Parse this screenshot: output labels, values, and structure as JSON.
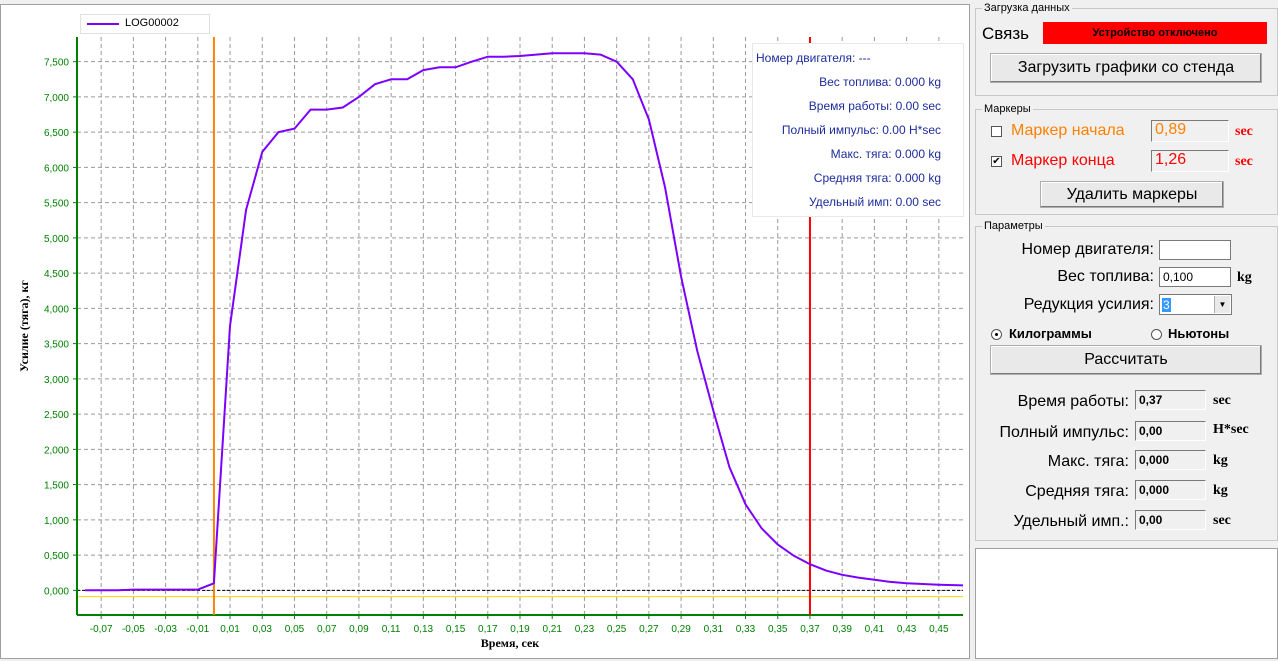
{
  "colors": {
    "curve": "#7d00ff",
    "start_marker": "#ff8000",
    "end_marker": "#ff0000",
    "axis": "#008000",
    "status_bg": "#ff0000"
  },
  "chart_data": {
    "type": "line",
    "xlabel": "Время, сек",
    "ylabel": "Усилие (тяга), кг",
    "xlim": [
      -0.085,
      0.465
    ],
    "ylim": [
      -0.35,
      7.85
    ],
    "x_ticks": [
      "-0,07",
      "-0,05",
      "-0,03",
      "-0,01",
      "0,01",
      "0,03",
      "0,05",
      "0,07",
      "0,09",
      "0,11",
      "0,13",
      "0,15",
      "0,17",
      "0,19",
      "0,21",
      "0,23",
      "0,25",
      "0,27",
      "0,29",
      "0,31",
      "0,33",
      "0,35",
      "0,37",
      "0,39",
      "0,41",
      "0,43",
      "0,45"
    ],
    "y_ticks": [
      "0,000",
      "0,500",
      "1,000",
      "1,500",
      "2,000",
      "2,500",
      "3,000",
      "3,500",
      "4,000",
      "4,500",
      "5,000",
      "5,500",
      "6,000",
      "6,500",
      "7,000",
      "7,500"
    ],
    "series": [
      {
        "name": "LOG00002",
        "x": [
          -0.08,
          -0.07,
          -0.06,
          -0.05,
          -0.04,
          -0.03,
          -0.02,
          -0.01,
          0.0,
          0.01,
          0.02,
          0.03,
          0.04,
          0.05,
          0.06,
          0.07,
          0.08,
          0.09,
          0.1,
          0.11,
          0.12,
          0.13,
          0.14,
          0.15,
          0.16,
          0.17,
          0.18,
          0.19,
          0.2,
          0.21,
          0.22,
          0.23,
          0.24,
          0.25,
          0.26,
          0.27,
          0.28,
          0.29,
          0.3,
          0.31,
          0.32,
          0.33,
          0.34,
          0.35,
          0.36,
          0.37,
          0.38,
          0.39,
          0.4,
          0.41,
          0.42,
          0.43,
          0.44,
          0.45,
          0.465
        ],
        "y": [
          0.0,
          0.0,
          0.0,
          0.01,
          0.01,
          0.01,
          0.01,
          0.01,
          0.1,
          3.75,
          5.4,
          6.22,
          6.5,
          6.55,
          6.82,
          6.82,
          6.85,
          7.0,
          7.18,
          7.25,
          7.25,
          7.38,
          7.42,
          7.42,
          7.5,
          7.57,
          7.57,
          7.58,
          7.6,
          7.62,
          7.62,
          7.62,
          7.6,
          7.5,
          7.25,
          6.68,
          5.72,
          4.45,
          3.4,
          2.55,
          1.75,
          1.22,
          0.88,
          0.65,
          0.49,
          0.37,
          0.28,
          0.22,
          0.18,
          0.15,
          0.12,
          0.1,
          0.09,
          0.08,
          0.07
        ]
      }
    ],
    "markers": [
      {
        "name": "Маркер начала",
        "x": 0.0
      },
      {
        "name": "Маркер конца",
        "x": 0.37
      }
    ],
    "baseline_yellow": -0.09,
    "grid": true,
    "legend": "top-left"
  },
  "info_box": {
    "engine_no": "Номер двигателя: ---",
    "fuel_weight": "Вес топлива: 0.000 kg",
    "burn_time": "Время работы: 0.00 sec",
    "total_impulse": "Полный импульс: 0.00 H*sec",
    "max_thrust": "Макс. тяга: 0.000 kg",
    "avg_thrust": "Средняя тяга: 0.000 kg",
    "specific_impulse": "Удельный имп: 0.00 sec"
  },
  "load_group": {
    "title": "Загрузка данных",
    "connection_label": "Связь",
    "status": "Устройство отключено",
    "load_button": "Загрузить графики со стенда"
  },
  "markers_group": {
    "title": "Маркеры",
    "start_label": "Маркер начала",
    "start_value": "0,89",
    "start_checked": false,
    "end_label": "Маркер конца",
    "end_value": "1,26",
    "end_checked": true,
    "unit": "sec",
    "delete_button": "Удалить маркеры"
  },
  "params_group": {
    "title": "Параметры",
    "engine_no_label": "Номер двигателя:",
    "engine_no_value": "",
    "fuel_label": "Вес топлива:",
    "fuel_value": "0,100",
    "fuel_unit": "kg",
    "reduction_label": "Редукция усилия:",
    "reduction_value": "3",
    "radio_kg": "Килограммы",
    "radio_n": "Ньютоны",
    "calc_button": "Рассчитать",
    "burn_time_label": "Время работы:",
    "burn_time_value": "0,37",
    "burn_time_unit": "sec",
    "impulse_label": "Полный импульс:",
    "impulse_value": "0,00",
    "impulse_unit": "H*sec",
    "max_label": "Макс. тяга:",
    "max_value": "0,000",
    "max_unit": "kg",
    "avg_label": "Средняя тяга:",
    "avg_value": "0,000",
    "avg_unit": "kg",
    "spec_label": "Удельный имп.:",
    "spec_value": "0,00",
    "spec_unit": "sec"
  }
}
